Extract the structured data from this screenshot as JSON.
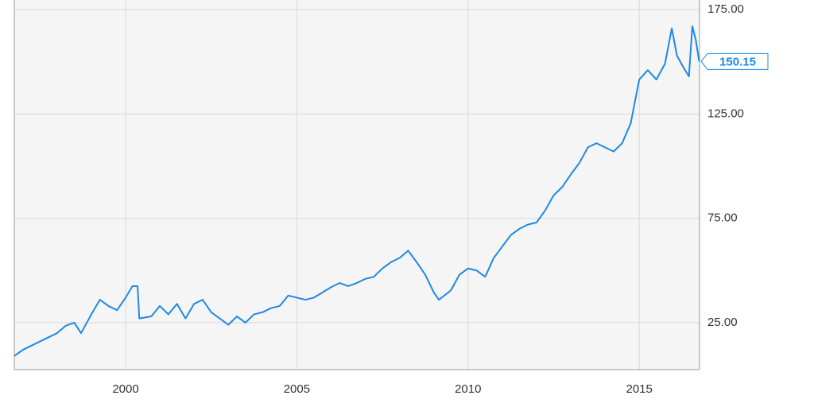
{
  "chart_data": {
    "type": "line",
    "x": [
      1996.75,
      1997.0,
      1997.5,
      1998.0,
      1998.25,
      1998.5,
      1998.7,
      1999.0,
      1999.25,
      1999.5,
      1999.75,
      2000.0,
      2000.2,
      2000.35,
      2000.4,
      2000.75,
      2001.0,
      2001.25,
      2001.5,
      2001.75,
      2002.0,
      2002.25,
      2002.5,
      2002.75,
      2003.0,
      2003.25,
      2003.5,
      2003.75,
      2004.0,
      2004.25,
      2004.5,
      2004.75,
      2005.0,
      2005.25,
      2005.5,
      2005.75,
      2006.0,
      2006.25,
      2006.5,
      2006.75,
      2007.0,
      2007.25,
      2007.5,
      2007.75,
      2008.0,
      2008.25,
      2008.5,
      2008.75,
      2009.0,
      2009.15,
      2009.5,
      2009.75,
      2010.0,
      2010.25,
      2010.5,
      2010.75,
      2011.0,
      2011.25,
      2011.5,
      2011.75,
      2012.0,
      2012.25,
      2012.5,
      2012.75,
      2013.0,
      2013.25,
      2013.5,
      2013.75,
      2014.0,
      2014.25,
      2014.5,
      2014.75,
      2015.0,
      2015.25,
      2015.5,
      2015.75,
      2015.95,
      2016.1,
      2016.3,
      2016.45,
      2016.55,
      2016.65,
      2016.75
    ],
    "values": [
      9,
      12,
      16,
      20,
      23.5,
      25,
      20,
      29,
      36,
      33,
      31,
      37,
      42.5,
      42.5,
      27,
      28,
      33,
      29,
      34,
      27,
      34,
      36,
      30,
      27,
      24,
      28,
      25,
      29,
      30,
      32,
      33,
      38,
      37,
      36,
      37,
      39.5,
      42,
      44,
      42.5,
      44,
      46,
      47,
      51,
      54,
      56,
      59.5,
      54,
      48,
      39.5,
      36,
      40.5,
      48,
      51,
      50,
      47,
      56,
      61.5,
      67,
      70,
      72,
      73,
      78.7,
      86,
      90,
      96,
      101.5,
      109,
      111,
      109,
      107,
      111,
      120.5,
      141.5,
      146,
      141.5,
      149,
      166,
      153,
      147,
      143,
      167,
      160.5,
      150.15
    ],
    "color": "#1f88e5",
    "xlim": [
      1996.75,
      2016.76
    ],
    "xticks": [
      2000,
      2005,
      2010,
      2015
    ],
    "ylim": [
      2.5,
      179.6
    ],
    "yticks": [
      {
        "value": 25,
        "label": "25.00"
      },
      {
        "value": 75,
        "label": "75.00"
      },
      {
        "value": 125,
        "label": "125.00"
      },
      {
        "value": 175,
        "label": "175.00"
      }
    ],
    "grid": true
  }
}
